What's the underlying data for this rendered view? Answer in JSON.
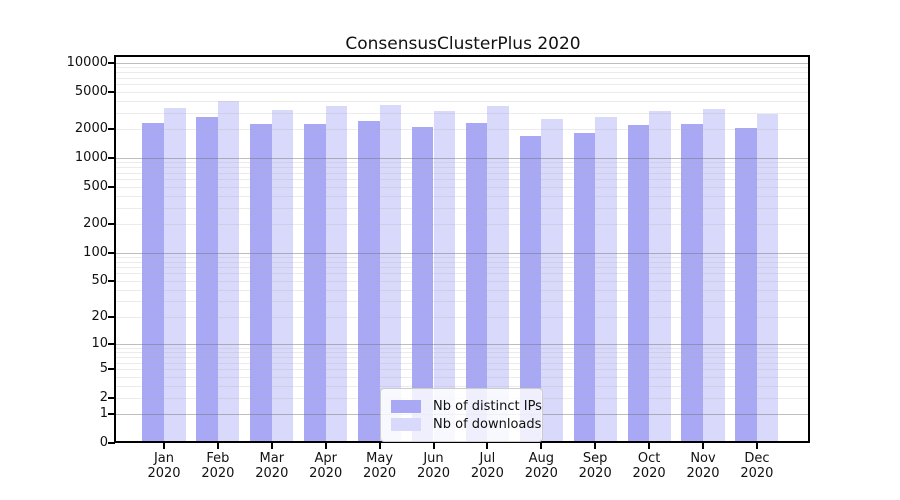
{
  "title": "ConsensusClusterPlus 2020",
  "chart_data": {
    "type": "bar",
    "title": "ConsensusClusterPlus 2020",
    "categories": [
      "Jan",
      "Feb",
      "Mar",
      "Apr",
      "May",
      "Jun",
      "Jul",
      "Aug",
      "Sep",
      "Oct",
      "Nov",
      "Dec"
    ],
    "year_label": "2020",
    "series": [
      {
        "name": "Nb of distinct IPs",
        "color": "#a8a8f4",
        "values": [
          2320,
          2720,
          2280,
          2260,
          2450,
          2130,
          2320,
          1720,
          1850,
          2220,
          2260,
          2060
        ]
      },
      {
        "name": "Nb of downloads",
        "color": "#d9d9fb",
        "values": [
          3360,
          3980,
          3200,
          3550,
          3580,
          3130,
          3550,
          2550,
          2720,
          3150,
          3250,
          2900
        ]
      }
    ],
    "yticks": [
      0,
      1,
      2,
      5,
      10,
      20,
      50,
      100,
      200,
      500,
      1000,
      2000,
      5000,
      10000
    ],
    "scale": "log1p",
    "ylim": [
      0,
      11500
    ],
    "xlabel": "",
    "ylabel": "",
    "grid": true,
    "legend_position": "bottom-center-inside"
  }
}
